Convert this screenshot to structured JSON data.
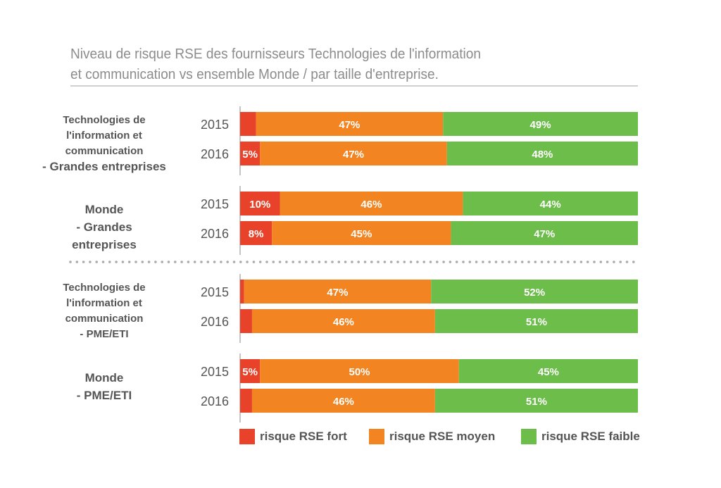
{
  "chart_data": {
    "type": "bar",
    "orientation": "horizontal",
    "stacked": true,
    "title": "Niveau de risque RSE des  fournisseurs Technologies de l'information et communication vs ensemble Monde / par taille d'entreprise.",
    "title_lines": [
      "Niveau de risque RSE des  fournisseurs Technologies de l'information",
      "et communication vs ensemble Monde / par taille d'entreprise."
    ],
    "xlim": [
      0,
      100
    ],
    "unit": "%",
    "grid": false,
    "legend_position": "bottom",
    "series": [
      {
        "name": "risque RSE fort",
        "color": "#e8432a"
      },
      {
        "name": "risque RSE moyen",
        "color": "#f28421"
      },
      {
        "name": "risque RSE faible",
        "color": "#6dbd4b"
      }
    ],
    "groups": [
      {
        "label_lines": [
          "Technologies de",
          "l'information et",
          "communication",
          "- Grandes entreprises"
        ],
        "rows": [
          {
            "year": "2015",
            "values": [
              4,
              47,
              49
            ]
          },
          {
            "year": "2016",
            "values": [
              5,
              47,
              48
            ]
          }
        ]
      },
      {
        "label_lines": [
          "Monde",
          "- Grandes",
          "entreprises"
        ],
        "rows": [
          {
            "year": "2015",
            "values": [
              10,
              46,
              44
            ]
          },
          {
            "year": "2016",
            "values": [
              8,
              45,
              47
            ]
          }
        ]
      },
      {
        "label_lines": [
          "Technologies de",
          "l'information et",
          "communication",
          "- PME/ETI"
        ],
        "rows": [
          {
            "year": "2015",
            "values": [
              1,
              47,
              52
            ]
          },
          {
            "year": "2016",
            "values": [
              3,
              46,
              51
            ]
          }
        ]
      },
      {
        "label_lines": [
          "Monde",
          "- PME/ETI"
        ],
        "rows": [
          {
            "year": "2015",
            "values": [
              5,
              50,
              45
            ]
          },
          {
            "year": "2016",
            "values": [
              3,
              46,
              51
            ]
          }
        ]
      }
    ]
  }
}
